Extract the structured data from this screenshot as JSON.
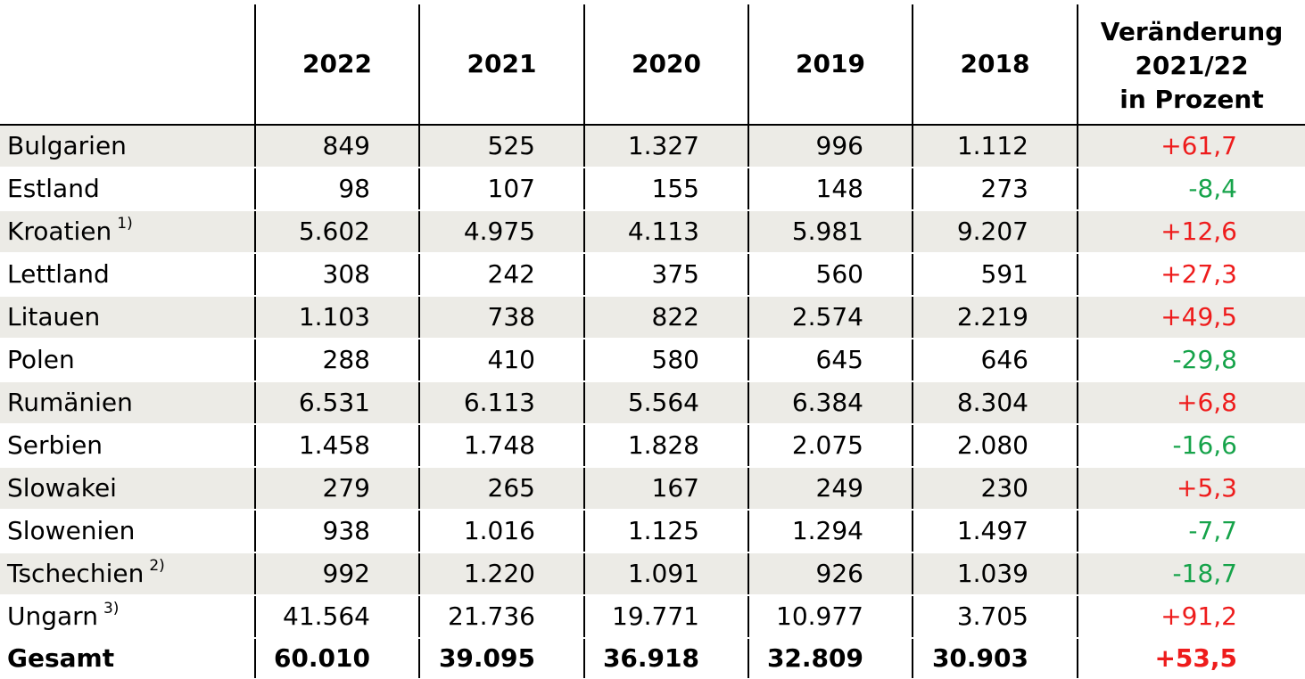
{
  "table": {
    "header": {
      "years": [
        "2022",
        "2021",
        "2020",
        "2019",
        "2018"
      ],
      "change_label_lines": [
        "Veränderung",
        "2021/22",
        "in Prozent"
      ]
    },
    "rows": [
      {
        "country": "Bulgarien",
        "footnote": "",
        "values": [
          "849",
          "525",
          "1.327",
          "996",
          "1.112"
        ],
        "change": "+61,7",
        "trend": "up"
      },
      {
        "country": "Estland",
        "footnote": "",
        "values": [
          "98",
          "107",
          "155",
          "148",
          "273"
        ],
        "change": "-8,4",
        "trend": "down"
      },
      {
        "country": "Kroatien",
        "footnote": "1)",
        "values": [
          "5.602",
          "4.975",
          "4.113",
          "5.981",
          "9.207"
        ],
        "change": "+12,6",
        "trend": "up"
      },
      {
        "country": "Lettland",
        "footnote": "",
        "values": [
          "308",
          "242",
          "375",
          "560",
          "591"
        ],
        "change": "+27,3",
        "trend": "up"
      },
      {
        "country": "Litauen",
        "footnote": "",
        "values": [
          "1.103",
          "738",
          "822",
          "2.574",
          "2.219"
        ],
        "change": "+49,5",
        "trend": "up"
      },
      {
        "country": "Polen",
        "footnote": "",
        "values": [
          "288",
          "410",
          "580",
          "645",
          "646"
        ],
        "change": "-29,8",
        "trend": "down"
      },
      {
        "country": "Rumänien",
        "footnote": "",
        "values": [
          "6.531",
          "6.113",
          "5.564",
          "6.384",
          "8.304"
        ],
        "change": "+6,8",
        "trend": "up"
      },
      {
        "country": "Serbien",
        "footnote": "",
        "values": [
          "1.458",
          "1.748",
          "1.828",
          "2.075",
          "2.080"
        ],
        "change": "-16,6",
        "trend": "down"
      },
      {
        "country": "Slowakei",
        "footnote": "",
        "values": [
          "279",
          "265",
          "167",
          "249",
          "230"
        ],
        "change": "+5,3",
        "trend": "up"
      },
      {
        "country": "Slowenien",
        "footnote": "",
        "values": [
          "938",
          "1.016",
          "1.125",
          "1.294",
          "1.497"
        ],
        "change": "-7,7",
        "trend": "down"
      },
      {
        "country": "Tschechien",
        "footnote": "2)",
        "values": [
          "992",
          "1.220",
          "1.091",
          "926",
          "1.039"
        ],
        "change": "-18,7",
        "trend": "down"
      },
      {
        "country": "Ungarn",
        "footnote": "3)",
        "values": [
          "41.564",
          "21.736",
          "19.771",
          "10.977",
          "3.705"
        ],
        "change": "+91,2",
        "trend": "up"
      }
    ],
    "total": {
      "label": "Gesamt",
      "values": [
        "60.010",
        "39.095",
        "36.918",
        "32.809",
        "30.903"
      ],
      "change": "+53,5",
      "trend": "up"
    }
  },
  "colors": {
    "row_shade": "#ecebe6",
    "increase": "#ee1c1c",
    "decrease": "#16a34a"
  }
}
